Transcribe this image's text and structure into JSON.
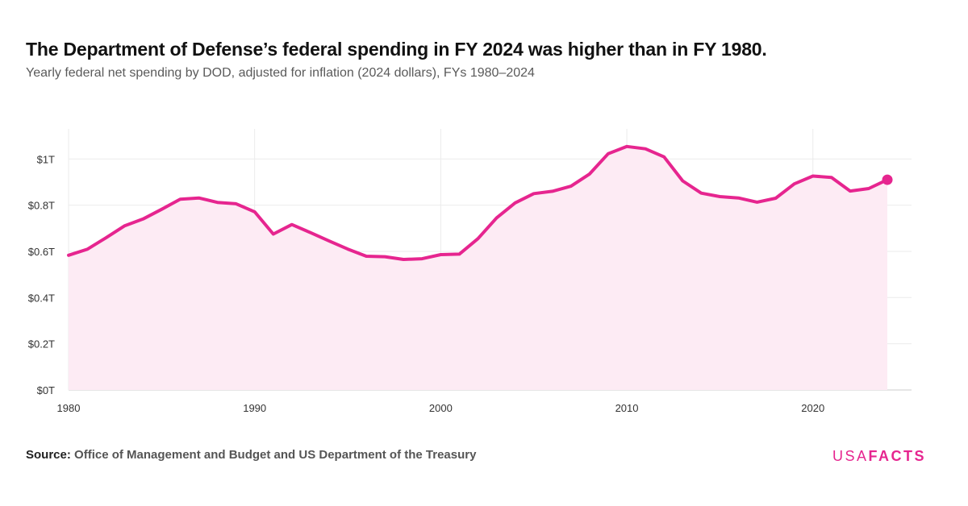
{
  "header": {
    "title": "The Department of Defense’s federal spending in FY 2024 was higher than in FY 1980.",
    "subtitle": "Yearly federal net spending by DOD, adjusted for inflation (2024 dollars), FYs 1980–2024"
  },
  "footer": {
    "source_label": "Source:",
    "source_text": "Office of Management and Budget and US Department of the Treasury",
    "logo_part1": "USA",
    "logo_part2": "FACTS"
  },
  "colors": {
    "line": "#e6258f",
    "area": "#fdebf4",
    "grid": "#ebebeb",
    "axis": "#cccccc"
  },
  "chart_data": {
    "type": "area",
    "title": "The Department of Defense’s federal spending in FY 2024 was higher than in FY 1980.",
    "subtitle": "Yearly federal net spending by DOD, adjusted for inflation (2024 dollars), FYs 1980–2024",
    "xlabel": "",
    "ylabel": "",
    "unit": "trillions of 2024 dollars",
    "xlim": [
      1980,
      2025.3
    ],
    "ylim": [
      0,
      1.13
    ],
    "x_ticks": [
      1980,
      1990,
      2000,
      2010,
      2020
    ],
    "x_tick_labels": [
      "1980",
      "1990",
      "2000",
      "2010",
      "2020"
    ],
    "y_ticks": [
      0,
      0.2,
      0.4,
      0.6,
      0.8,
      1.0
    ],
    "y_tick_labels": [
      "$0T",
      "$0.2T",
      "$0.4T",
      "$0.6T",
      "$0.8T",
      "$1T"
    ],
    "grid": true,
    "legend": "none",
    "highlight_last_point": true,
    "x": [
      1980,
      1981,
      1982,
      1983,
      1984,
      1985,
      1986,
      1987,
      1988,
      1989,
      1990,
      1991,
      1992,
      1993,
      1994,
      1995,
      1996,
      1997,
      1998,
      1999,
      2000,
      2001,
      2002,
      2003,
      2004,
      2005,
      2006,
      2007,
      2008,
      2009,
      2010,
      2011,
      2012,
      2013,
      2014,
      2015,
      2016,
      2017,
      2018,
      2019,
      2020,
      2021,
      2022,
      2023,
      2024
    ],
    "values": [
      0.583,
      0.609,
      0.658,
      0.71,
      0.74,
      0.782,
      0.826,
      0.831,
      0.812,
      0.806,
      0.771,
      0.675,
      0.716,
      0.681,
      0.645,
      0.61,
      0.579,
      0.577,
      0.565,
      0.568,
      0.586,
      0.588,
      0.655,
      0.745,
      0.81,
      0.85,
      0.86,
      0.882,
      0.935,
      1.023,
      1.054,
      1.044,
      1.009,
      0.905,
      0.852,
      0.837,
      0.831,
      0.813,
      0.83,
      0.892,
      0.926,
      0.92,
      0.861,
      0.872,
      0.91
    ]
  }
}
